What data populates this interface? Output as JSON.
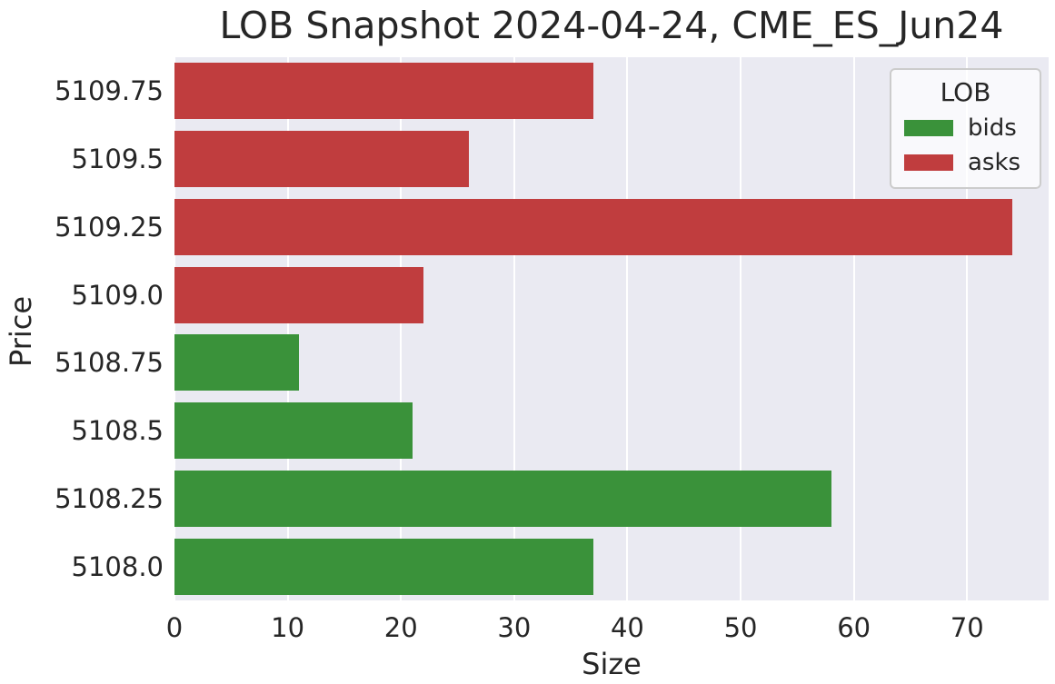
{
  "chart_data": {
    "type": "bar",
    "orientation": "horizontal",
    "title": "LOB Snapshot 2024-04-24, CME_ES_Jun24",
    "xlabel": "Size",
    "ylabel": "Price",
    "categories": [
      "5109.75",
      "5109.5",
      "5109.25",
      "5109.0",
      "5108.75",
      "5108.5",
      "5108.25",
      "5108.0"
    ],
    "bars": [
      {
        "price": "5109.75",
        "size": 37,
        "side": "asks"
      },
      {
        "price": "5109.5",
        "size": 26,
        "side": "asks"
      },
      {
        "price": "5109.25",
        "size": 74,
        "side": "asks"
      },
      {
        "price": "5109.0",
        "size": 22,
        "side": "asks"
      },
      {
        "price": "5108.75",
        "size": 11,
        "side": "bids"
      },
      {
        "price": "5108.5",
        "size": 21,
        "side": "bids"
      },
      {
        "price": "5108.25",
        "size": 58,
        "side": "bids"
      },
      {
        "price": "5108.0",
        "size": 37,
        "side": "bids"
      }
    ],
    "series": [
      {
        "name": "bids",
        "color": "#3a923a",
        "values": [
          11,
          21,
          58,
          37
        ]
      },
      {
        "name": "asks",
        "color": "#c03d3e",
        "values": [
          37,
          26,
          74,
          22
        ]
      }
    ],
    "legend": {
      "title": "LOB",
      "position": "upper right",
      "entries": [
        {
          "label": "bids",
          "color": "#3a923a"
        },
        {
          "label": "asks",
          "color": "#c03d3e"
        }
      ]
    },
    "x_ticks": [
      0,
      10,
      20,
      30,
      40,
      50,
      60,
      70
    ],
    "xlim": [
      0,
      77.2
    ],
    "grid": true,
    "style": {
      "plot_background": "#eaeaf2",
      "grid_color": "#ffffff",
      "text_color": "#262626"
    }
  }
}
